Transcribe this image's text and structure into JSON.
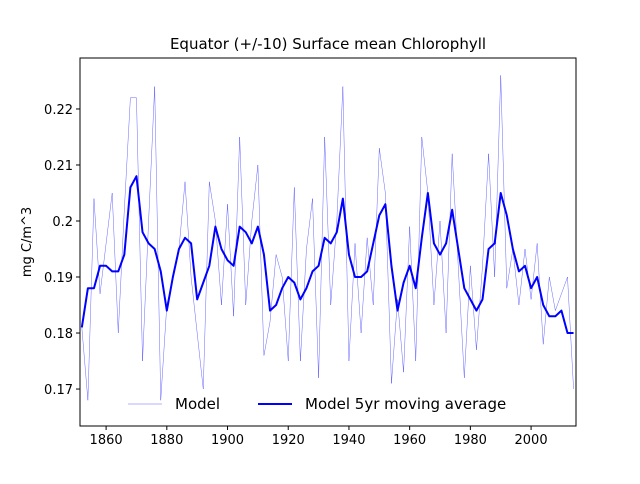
{
  "chart_data": {
    "type": "line",
    "title": "Equator (+/-10) Surface mean Chlorophyll",
    "y_label": "mg C/m^3",
    "x": [
      1852,
      1854,
      1856,
      1858,
      1860,
      1862,
      1864,
      1866,
      1868,
      1870,
      1872,
      1874,
      1876,
      1878,
      1880,
      1882,
      1884,
      1886,
      1888,
      1890,
      1892,
      1894,
      1896,
      1898,
      1900,
      1902,
      1904,
      1906,
      1908,
      1910,
      1912,
      1914,
      1916,
      1918,
      1920,
      1922,
      1924,
      1926,
      1928,
      1930,
      1932,
      1934,
      1936,
      1938,
      1940,
      1942,
      1944,
      1946,
      1948,
      1950,
      1952,
      1954,
      1956,
      1958,
      1960,
      1962,
      1964,
      1966,
      1968,
      1970,
      1972,
      1974,
      1976,
      1978,
      1980,
      1982,
      1984,
      1986,
      1988,
      1990,
      1992,
      1994,
      1996,
      1998,
      2000,
      2002,
      2004,
      2006,
      2008,
      2010,
      2012,
      2014
    ],
    "series": [
      {
        "name": "Model",
        "color": "#0000ff",
        "width": 0.3,
        "values": [
          0.181,
          0.168,
          0.204,
          0.187,
          0.196,
          0.205,
          0.18,
          0.202,
          0.222,
          0.222,
          0.175,
          0.2,
          0.224,
          0.168,
          0.185,
          0.19,
          0.195,
          0.207,
          0.19,
          0.18,
          0.17,
          0.207,
          0.2,
          0.185,
          0.203,
          0.183,
          0.215,
          0.185,
          0.2,
          0.21,
          0.176,
          0.182,
          0.194,
          0.19,
          0.175,
          0.206,
          0.175,
          0.195,
          0.204,
          0.172,
          0.215,
          0.185,
          0.2,
          0.224,
          0.175,
          0.196,
          0.18,
          0.197,
          0.185,
          0.213,
          0.205,
          0.171,
          0.186,
          0.173,
          0.199,
          0.175,
          0.215,
          0.205,
          0.185,
          0.2,
          0.18,
          0.212,
          0.192,
          0.172,
          0.192,
          0.177,
          0.192,
          0.212,
          0.19,
          0.226,
          0.188,
          0.195,
          0.185,
          0.195,
          0.186,
          0.196,
          0.178,
          0.19,
          0.184,
          0.187,
          0.19,
          0.17
        ]
      },
      {
        "name": "Model 5yr moving average",
        "color": "#0000ff",
        "width": 2,
        "values": [
          0.181,
          0.188,
          0.188,
          0.192,
          0.192,
          0.191,
          0.191,
          0.194,
          0.206,
          0.208,
          0.198,
          0.196,
          0.195,
          0.191,
          0.184,
          0.19,
          0.195,
          0.197,
          0.196,
          0.186,
          0.189,
          0.192,
          0.199,
          0.195,
          0.193,
          0.192,
          0.199,
          0.198,
          0.196,
          0.199,
          0.194,
          0.184,
          0.185,
          0.188,
          0.19,
          0.189,
          0.186,
          0.188,
          0.191,
          0.192,
          0.197,
          0.196,
          0.198,
          0.204,
          0.194,
          0.19,
          0.19,
          0.191,
          0.196,
          0.201,
          0.203,
          0.192,
          0.184,
          0.189,
          0.192,
          0.188,
          0.197,
          0.205,
          0.196,
          0.194,
          0.196,
          0.202,
          0.195,
          0.188,
          0.186,
          0.184,
          0.186,
          0.195,
          0.196,
          0.205,
          0.201,
          0.195,
          0.191,
          0.192,
          0.188,
          0.19,
          0.185,
          0.183,
          0.183,
          0.184,
          0.18,
          0.18
        ]
      }
    ],
    "xlim": [
      1851.4,
      2014.8
    ],
    "ylim": [
      0.1634,
      0.2291
    ],
    "xticks": [
      1860,
      1880,
      1900,
      1920,
      1940,
      1960,
      1980,
      2000
    ],
    "yticks": [
      0.17,
      0.18,
      0.19,
      0.2,
      0.21,
      0.22
    ],
    "legend": "lower center"
  }
}
